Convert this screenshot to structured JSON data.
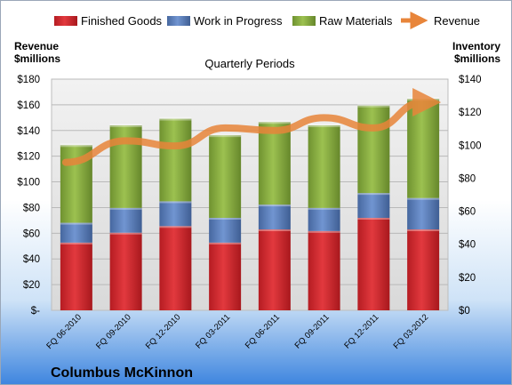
{
  "chart_data": {
    "type": "bar",
    "stacked": true,
    "subtitle": "Quarterly Periods",
    "company": "Columbus McKinnon",
    "ylabel_left": [
      "Revenue",
      "$millions"
    ],
    "ylabel_right": [
      "Inventory",
      "$millions"
    ],
    "categories": [
      "FQ 06-2010",
      "FQ 09-2010",
      "FQ 12-2010",
      "FQ 03-2011",
      "FQ 06-2011",
      "FQ 09-2011",
      "FQ 12-2011",
      "FQ 03-2012"
    ],
    "series": [
      {
        "name": "Finished Goods",
        "axis": "right",
        "color": "#d3282d",
        "values": [
          41,
          47,
          51,
          41,
          49,
          48,
          56,
          49
        ]
      },
      {
        "name": "Work in Progress",
        "axis": "right",
        "color": "#5a80bf",
        "values": [
          12,
          15,
          15,
          15,
          15,
          14,
          15,
          19
        ]
      },
      {
        "name": "Raw Materials",
        "axis": "right",
        "color": "#86ad3e",
        "values": [
          47,
          50,
          50,
          50,
          50,
          50,
          53,
          60
        ]
      },
      {
        "name": "Revenue",
        "axis": "left",
        "type": "line",
        "color": "#e8853a",
        "values": [
          118,
          132,
          128,
          142,
          140,
          150,
          142,
          162
        ]
      }
    ],
    "ylim_left": [
      0,
      180
    ],
    "yticks_left": [
      "$-",
      "$20",
      "$40",
      "$60",
      "$80",
      "$100",
      "$120",
      "$140",
      "$160",
      "$180"
    ],
    "ylim_right": [
      0,
      140
    ],
    "yticks_right": [
      "$0",
      "$20",
      "$40",
      "$60",
      "$80",
      "$100",
      "$120",
      "$140"
    ],
    "grid": true,
    "legend_position": "top"
  }
}
